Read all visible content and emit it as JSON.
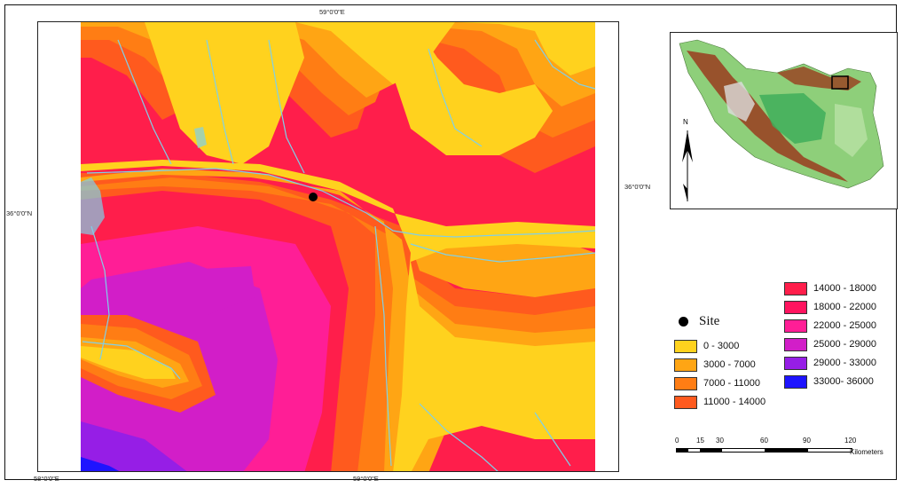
{
  "coordinates": {
    "top": "59°0'0\"E",
    "right": "36°0'0\"N",
    "left": "36°0'0\"N",
    "bottom_left": "58°0'0\"E",
    "bottom_center": "59°0'0\"E"
  },
  "inset": {
    "north_label": "N"
  },
  "legend": {
    "site_label": "Site",
    "classes_col1": [
      {
        "label": "0 - 3000",
        "color": "#ffd21e"
      },
      {
        "label": "3000 - 7000",
        "color": "#ffa514"
      },
      {
        "label": "7000 - 11000",
        "color": "#ff7d14"
      },
      {
        "label": "11000 - 14000",
        "color": "#ff5a1e"
      }
    ],
    "classes_col2": [
      {
        "label": "14000 - 18000",
        "color": "#ff1e4b"
      },
      {
        "label": "18000 - 22000",
        "color": "#ff145f"
      },
      {
        "label": "22000 - 25000",
        "color": "#ff1e96"
      },
      {
        "label": "25000 - 29000",
        "color": "#d21ec8"
      },
      {
        "label": "29000 - 33000",
        "color": "#961ee6"
      },
      {
        "label": "33000- 36000",
        "color": "#1e14ff"
      }
    ]
  },
  "scale": {
    "ticks": [
      "0",
      "15",
      "30",
      "60",
      "90",
      "120"
    ],
    "unit": "Kilometers"
  }
}
